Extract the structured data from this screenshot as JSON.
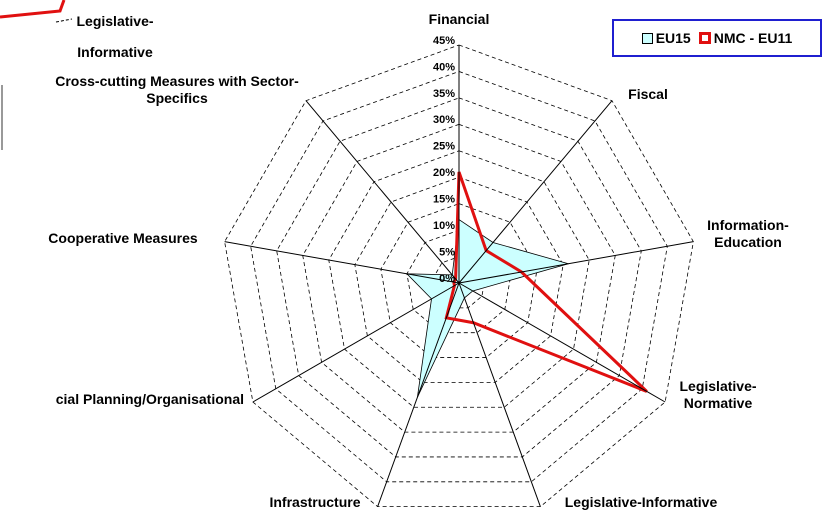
{
  "chart_data": {
    "type": "radar",
    "fragment_label": "Legislative-Informative",
    "categories": [
      "Financial",
      "Fiscal",
      "Information-Education",
      "Legislative-Normative",
      "Legislative-Informative",
      "Infrastructure",
      "cial Planning/Organisational",
      "Cooperative Measures",
      "Cross-cutting Measures with Sector-Specifics"
    ],
    "series": [
      {
        "name": "EU15",
        "color": "#ccffff",
        "stroke": "#000000",
        "values": [
          12,
          10,
          21,
          3,
          3,
          23,
          6,
          10,
          2
        ]
      },
      {
        "name": "NMC - EU11",
        "color": "#e01010",
        "values": [
          21,
          8,
          12,
          41,
          8,
          7,
          1,
          1,
          1
        ]
      }
    ],
    "ylim": [
      0,
      45
    ],
    "yticks": [
      {
        "value": 0,
        "label": "0%"
      },
      {
        "value": 5,
        "label": "5%"
      },
      {
        "value": 10,
        "label": "10%"
      },
      {
        "value": 15,
        "label": "15%"
      },
      {
        "value": 20,
        "label": "20%"
      },
      {
        "value": 25,
        "label": "25%"
      },
      {
        "value": 30,
        "label": "30%"
      },
      {
        "value": 35,
        "label": "35%"
      },
      {
        "value": 40,
        "label": "40%"
      },
      {
        "value": 45,
        "label": "45%"
      }
    ],
    "grid": true,
    "legend": "top-right"
  }
}
